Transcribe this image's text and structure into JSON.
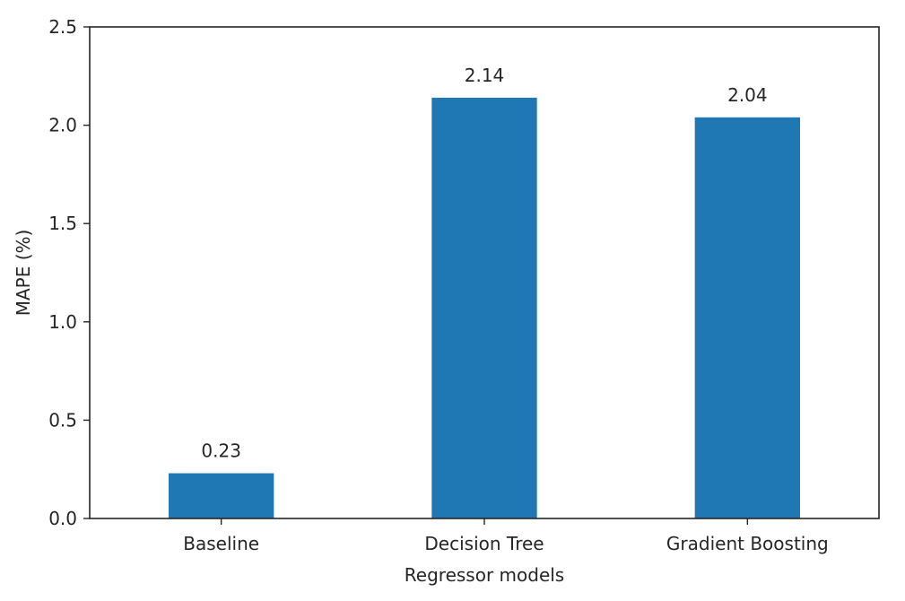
{
  "chart_data": {
    "type": "bar",
    "title": "",
    "xlabel": "Regressor models",
    "ylabel": "MAPE (%)",
    "categories": [
      "Baseline",
      "Decision Tree",
      "Gradient Boosting"
    ],
    "values": [
      0.23,
      2.14,
      2.04
    ],
    "data_labels": [
      "0.23",
      "2.14",
      "2.04"
    ],
    "ylim": [
      0,
      2.5
    ],
    "yticks": [
      0.0,
      0.5,
      1.0,
      1.5,
      2.0,
      2.5
    ],
    "ytick_labels": [
      "0.0",
      "0.5",
      "1.0",
      "1.5",
      "2.0",
      "2.5"
    ],
    "grid": false,
    "legend": "none",
    "bar_color": "#1f77b4",
    "axis_color": "#262626"
  }
}
